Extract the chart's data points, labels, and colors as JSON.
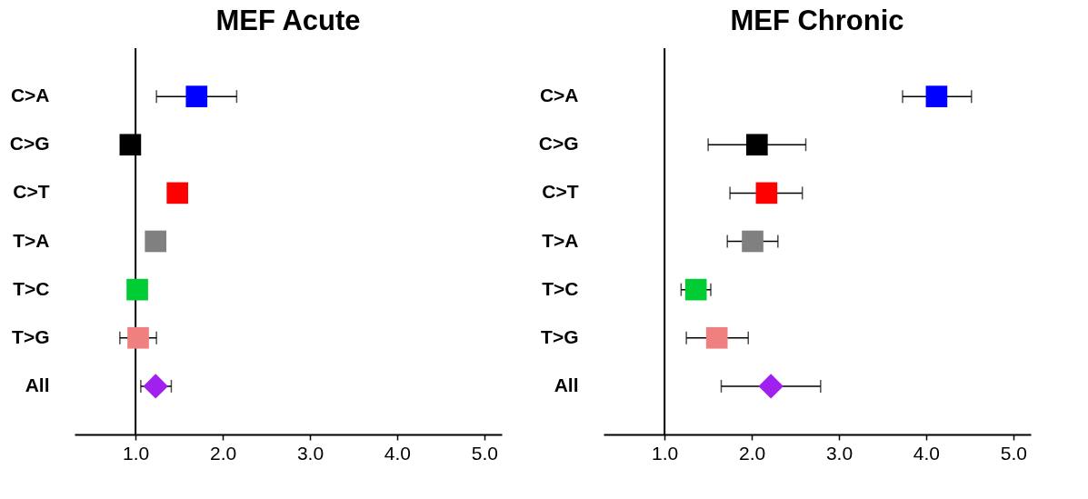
{
  "chart_data": [
    {
      "type": "scatter",
      "title": "MEF Acute",
      "orientation": "horizontal",
      "categories": [
        "C>A",
        "C>G",
        "C>T",
        "T>A",
        "T>C",
        "T>G",
        "All"
      ],
      "xlim": [
        0.3,
        5.2
      ],
      "xticks": [
        {
          "value": 1,
          "label": "1.0"
        },
        {
          "value": 2,
          "label": "2.0"
        },
        {
          "value": 3,
          "label": "3.0"
        },
        {
          "value": 4,
          "label": "4.0"
        },
        {
          "value": 5,
          "label": "5.0"
        }
      ],
      "grid": false,
      "ref_lines": [
        {
          "axis": "x",
          "value": 1,
          "color": "#000000"
        }
      ],
      "series": [
        {
          "marker": "square",
          "colors": [
            "#0000ff",
            "#000000",
            "#ff0000",
            "#808080",
            "#00cc33",
            "#f08080",
            null
          ],
          "values": [
            1.7,
            0.94,
            1.48,
            1.23,
            1.02,
            1.03,
            null
          ],
          "errors": [
            [
              1.24,
              2.16
            ],
            null,
            null,
            null,
            null,
            [
              0.82,
              1.24
            ],
            null
          ]
        },
        {
          "marker": "diamond",
          "colors": [
            null,
            null,
            null,
            null,
            null,
            null,
            "#a020f0"
          ],
          "values": [
            null,
            null,
            null,
            null,
            null,
            null,
            1.23
          ],
          "errors": [
            null,
            null,
            null,
            null,
            null,
            null,
            [
              1.06,
              1.41
            ]
          ]
        }
      ]
    },
    {
      "type": "scatter",
      "title": "MEF Chronic",
      "orientation": "horizontal",
      "categories": [
        "C>A",
        "C>G",
        "C>T",
        "T>A",
        "T>C",
        "T>G",
        "All"
      ],
      "xlim": [
        0.3,
        5.2
      ],
      "xticks": [
        {
          "value": 1,
          "label": "1.0"
        },
        {
          "value": 2,
          "label": "2.0"
        },
        {
          "value": 3,
          "label": "3.0"
        },
        {
          "value": 4,
          "label": "4.0"
        },
        {
          "value": 5,
          "label": "5.0"
        }
      ],
      "grid": false,
      "ref_lines": [
        {
          "axis": "x",
          "value": 1,
          "color": "#000000"
        }
      ],
      "series": [
        {
          "marker": "square",
          "colors": [
            "#0000ff",
            "#000000",
            "#ff0000",
            "#808080",
            "#00cc33",
            "#f08080",
            null
          ],
          "values": [
            4.12,
            2.06,
            2.17,
            2.01,
            1.36,
            1.6,
            null
          ],
          "errors": [
            [
              3.73,
              4.52
            ],
            [
              1.5,
              2.62
            ],
            [
              1.75,
              2.58
            ],
            [
              1.72,
              2.3
            ],
            [
              1.19,
              1.53
            ],
            [
              1.25,
              1.96
            ],
            null
          ]
        },
        {
          "marker": "diamond",
          "colors": [
            null,
            null,
            null,
            null,
            null,
            null,
            "#a020f0"
          ],
          "values": [
            null,
            null,
            null,
            null,
            null,
            null,
            2.22
          ],
          "errors": [
            null,
            null,
            null,
            null,
            null,
            null,
            [
              1.65,
              2.79
            ]
          ]
        }
      ]
    }
  ]
}
